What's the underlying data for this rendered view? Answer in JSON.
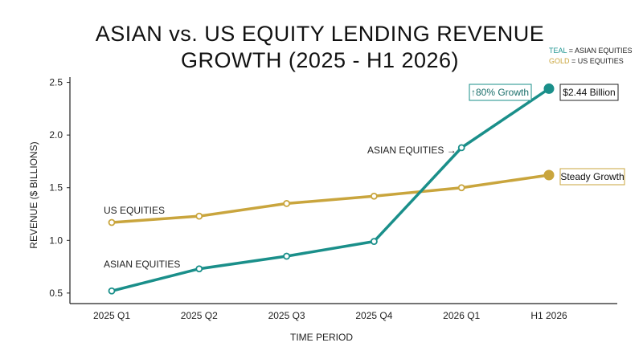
{
  "chart_data": {
    "type": "line",
    "title_line1": "ASIAN vs. US EQUITY LENDING REVENUE",
    "title_line2": "GROWTH (2025 - H1 2026)",
    "xlabel": "TIME PERIOD",
    "ylabel": "REVENUE ($ BILLIONS)",
    "categories": [
      "2025 Q1",
      "2025 Q2",
      "2025 Q3",
      "2025 Q4",
      "2026 Q1",
      "H1 2026"
    ],
    "ylim": [
      0.4,
      2.55
    ],
    "yticks": [
      "0.5",
      "1.0",
      "1.5",
      "2.0",
      "2.5"
    ],
    "ytick_values": [
      0.5,
      1.0,
      1.5,
      2.0,
      2.5
    ],
    "grid": false,
    "legend": {
      "placement": "top-right",
      "entries": [
        {
          "key": "TEAL",
          "text": " = ASIAN EQUITIES",
          "color": "#1f9490"
        },
        {
          "key": "GOLD",
          "text": " = US EQUITIES",
          "color": "#c9a53d"
        }
      ]
    },
    "series": [
      {
        "name": "ASIAN EQUITIES",
        "color": "#1a8f8a",
        "values": [
          0.52,
          0.73,
          0.85,
          0.99,
          1.88,
          2.44
        ]
      },
      {
        "name": "US EQUITIES",
        "color": "#c9a53d",
        "values": [
          1.17,
          1.23,
          1.35,
          1.42,
          1.5,
          1.62
        ]
      }
    ],
    "annotations": {
      "us_label": "US EQUITIES",
      "asian_label": "ASIAN EQUITIES",
      "asian_arrow_label": "ASIAN EQUITIES →",
      "growth_callout": "↑80% Growth",
      "value_callout": "$2.44 Billion",
      "steady_callout": "Steady Growth"
    }
  }
}
